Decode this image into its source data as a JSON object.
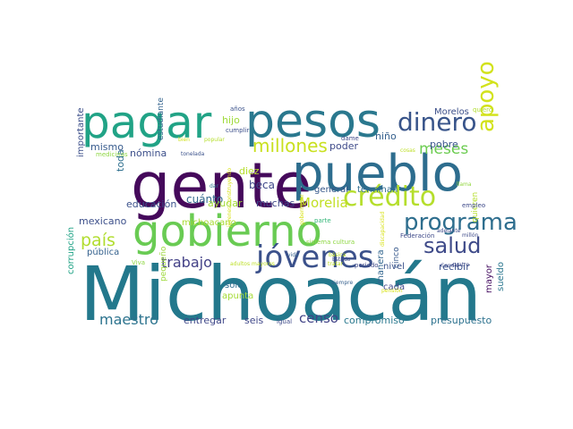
{
  "words": [
    {
      "text": "Michoacán",
      "color": "#23788c"
    },
    {
      "text": "gente",
      "color": "#45095b"
    },
    {
      "text": "pueblo",
      "color": "#2d6d8e"
    },
    {
      "text": "pesos",
      "color": "#2a788e"
    },
    {
      "text": "pagar",
      "color": "#21a386"
    },
    {
      "text": "gobierno",
      "color": "#69cb53"
    },
    {
      "text": "dinero",
      "color": "#38548a"
    },
    {
      "text": "jóvenes",
      "color": "#3b518b"
    },
    {
      "text": "programa",
      "color": "#2e6e8e"
    },
    {
      "text": "millones",
      "color": "#c9e020"
    },
    {
      "text": "crédito",
      "color": "#b5de2c"
    },
    {
      "text": "apoyo",
      "color": "#d2e21b"
    },
    {
      "text": "salud",
      "color": "#3e4a89"
    },
    {
      "text": "país",
      "color": "#b1dd2f"
    },
    {
      "text": "Morelia",
      "color": "#c1df24"
    },
    {
      "text": "trabajo",
      "color": "#424086"
    },
    {
      "text": "censo",
      "color": "#414487"
    },
    {
      "text": "maestro",
      "color": "#2c738e"
    },
    {
      "text": "meses",
      "color": "#6ccc51"
    },
    {
      "text": "beca",
      "color": "#3f4889"
    },
    {
      "text": "cuánto",
      "color": "#31688e"
    },
    {
      "text": "diez",
      "color": "#b5de2b"
    },
    {
      "text": "mismo",
      "color": "#375b8d"
    },
    {
      "text": "hijo",
      "color": "#9fda3a"
    },
    {
      "text": "poder",
      "color": "#3e4a89"
    },
    {
      "text": "niño",
      "color": "#35608d"
    },
    {
      "text": "pobre",
      "color": "#3a548c"
    },
    {
      "text": "nómina",
      "color": "#3c4f8a"
    },
    {
      "text": "educación",
      "color": "#3b528b"
    },
    {
      "text": "ayudar",
      "color": "#a2da37"
    },
    {
      "text": "muchas",
      "color": "#3f4788"
    },
    {
      "text": "general",
      "color": "#38598c"
    },
    {
      "text": "terminan",
      "color": "#2f6b8e"
    },
    {
      "text": "mexicano",
      "color": "#3c4f8a"
    },
    {
      "text": "michoacano",
      "color": "#a8db34"
    },
    {
      "text": "pública",
      "color": "#34618d"
    },
    {
      "text": "corrupción",
      "color": "#20a386"
    },
    {
      "text": "toda",
      "color": "#2e6f8e"
    },
    {
      "text": "importante",
      "color": "#3c4f8a"
    },
    {
      "text": "estudiante",
      "color": "#33638d"
    },
    {
      "text": "pequeño",
      "color": "#9dd93b"
    },
    {
      "text": "sólo",
      "color": "#2f6c8e"
    },
    {
      "text": "apunta",
      "color": "#a5db36"
    },
    {
      "text": "entregar",
      "color": "#3f4889"
    },
    {
      "text": "seis",
      "color": "#3f4788"
    },
    {
      "text": "compromiso",
      "color": "#2a788e"
    },
    {
      "text": "presupuesto",
      "color": "#2c718e"
    },
    {
      "text": "recibir",
      "color": "#3b518b"
    },
    {
      "text": "nivel",
      "color": "#3b528b"
    },
    {
      "text": "cada",
      "color": "#3f4889"
    },
    {
      "text": "manera",
      "color": "#32658e"
    },
    {
      "text": "cinco",
      "color": "#38598c"
    },
    {
      "text": "mayor",
      "color": "#471063"
    },
    {
      "text": "sueldo",
      "color": "#2a768e"
    },
    {
      "text": "quieren",
      "color": "#b5de2b"
    },
    {
      "text": "Morelos",
      "color": "#3c4f8a"
    },
    {
      "text": "quiero",
      "color": "#b1dd2f"
    },
    {
      "text": "años",
      "color": "#3b528b"
    },
    {
      "text": "cumplir",
      "color": "#3c4f8a"
    },
    {
      "text": "dame",
      "color": "#3e4a89"
    },
    {
      "text": "cosas",
      "color": "#bddf26"
    },
    {
      "text": "bien",
      "color": "#d0e11c"
    },
    {
      "text": "popular",
      "color": "#b5de2b"
    },
    {
      "text": "tonelada",
      "color": "#3b528b"
    },
    {
      "text": "medicinas",
      "color": "#8fd744"
    },
    {
      "text": "dar",
      "color": "#2c718e"
    },
    {
      "text": "llama",
      "color": "#93d741"
    },
    {
      "text": "empleo",
      "color": "#3e4a89"
    },
    {
      "text": "parte",
      "color": "#35b779"
    },
    {
      "text": "Federación",
      "color": "#3e4a89"
    },
    {
      "text": "millón",
      "color": "#3e4a89"
    },
    {
      "text": "adelante",
      "color": "#3e4a89"
    },
    {
      "text": "sistema cultura",
      "color": "#8fd744"
    },
    {
      "text": "vida",
      "color": "#355f8d"
    },
    {
      "text": "básica",
      "color": "#bddf26"
    },
    {
      "text": "adultos mayores",
      "color": "#bddf26"
    },
    {
      "text": "tratar",
      "color": "#bddf26"
    },
    {
      "text": "periodo",
      "color": "#3e4a89"
    },
    {
      "text": "Cendis",
      "color": "#3e4a89"
    },
    {
      "text": "cuatro",
      "color": "#3e4a89"
    },
    {
      "text": "pensión",
      "color": "#d8e219"
    },
    {
      "text": "siempre",
      "color": "#355f8d"
    },
    {
      "text": "igual",
      "color": "#3e4a89"
    },
    {
      "text": "Viva",
      "color": "#8fd744"
    },
    {
      "text": "jóvenes construyendo",
      "color": "#d8e219"
    },
    {
      "text": "gobernador",
      "color": "#d8e219"
    },
    {
      "text": "Estado",
      "color": "#3e4a89"
    },
    {
      "text": "discapacidad",
      "color": "#d8e219"
    }
  ]
}
